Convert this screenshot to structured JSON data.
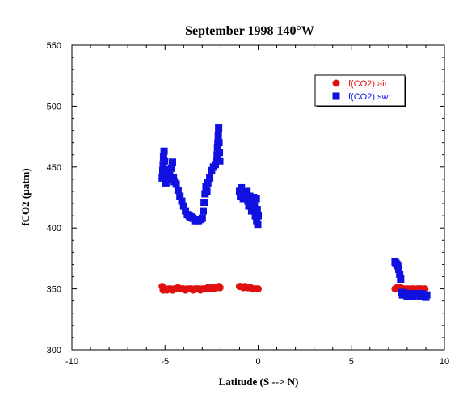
{
  "chart_data": {
    "type": "scatter",
    "title": "September 1998 140°W",
    "xlabel": "Latitude (S --> N)",
    "ylabel": "fCO2 (µatm)",
    "xlim": [
      -10,
      10
    ],
    "ylim": [
      300,
      550
    ],
    "x_ticks": [
      -10,
      -5,
      0,
      5,
      10
    ],
    "y_ticks": [
      300,
      350,
      400,
      450,
      500,
      550
    ],
    "x_tick_labels": [
      "-10",
      "-5",
      "0",
      "5",
      "10"
    ],
    "y_tick_labels": [
      "300",
      "350",
      "400",
      "450",
      "500",
      "550"
    ],
    "grid": false,
    "legend_position": "top-right",
    "series": [
      {
        "name": "f(CO2) air",
        "marker": "circle",
        "color": "#e01010",
        "points": [
          [
            -5.15,
            352
          ],
          [
            -5.1,
            349
          ],
          [
            -5.0,
            350
          ],
          [
            -4.9,
            349
          ],
          [
            -4.8,
            350
          ],
          [
            -4.7,
            350
          ],
          [
            -4.6,
            349
          ],
          [
            -4.5,
            350
          ],
          [
            -4.4,
            350
          ],
          [
            -4.3,
            351
          ],
          [
            -4.2,
            350
          ],
          [
            -4.1,
            350
          ],
          [
            -4.0,
            350
          ],
          [
            -3.9,
            349
          ],
          [
            -3.8,
            350
          ],
          [
            -3.7,
            350
          ],
          [
            -3.6,
            350
          ],
          [
            -3.5,
            349
          ],
          [
            -3.4,
            350
          ],
          [
            -3.3,
            350
          ],
          [
            -3.2,
            350
          ],
          [
            -3.1,
            349
          ],
          [
            -3.0,
            350
          ],
          [
            -2.9,
            350
          ],
          [
            -2.8,
            350
          ],
          [
            -2.7,
            351
          ],
          [
            -2.6,
            350
          ],
          [
            -2.5,
            351
          ],
          [
            -2.4,
            350
          ],
          [
            -2.3,
            351
          ],
          [
            -2.2,
            351
          ],
          [
            -2.1,
            352
          ],
          [
            -2.05,
            351
          ],
          [
            -1.0,
            352
          ],
          [
            -0.9,
            352
          ],
          [
            -0.8,
            351
          ],
          [
            -0.7,
            352
          ],
          [
            -0.6,
            351
          ],
          [
            -0.5,
            351
          ],
          [
            -0.4,
            351
          ],
          [
            -0.3,
            350
          ],
          [
            -0.2,
            350
          ],
          [
            -0.1,
            350
          ],
          [
            0.0,
            350
          ],
          [
            7.35,
            350
          ],
          [
            7.45,
            351
          ],
          [
            7.55,
            350
          ],
          [
            7.65,
            351
          ],
          [
            7.75,
            350
          ],
          [
            7.85,
            350
          ],
          [
            7.95,
            350
          ],
          [
            8.05,
            350
          ],
          [
            8.15,
            349
          ],
          [
            8.25,
            350
          ],
          [
            8.35,
            350
          ],
          [
            8.45,
            349
          ],
          [
            8.55,
            350
          ],
          [
            8.65,
            350
          ],
          [
            8.75,
            350
          ],
          [
            8.85,
            349
          ],
          [
            8.95,
            350
          ]
        ]
      },
      {
        "name": "f(CO2) sw",
        "marker": "square",
        "color": "#1010e0",
        "points": [
          [
            -5.15,
            441
          ],
          [
            -5.12,
            447
          ],
          [
            -5.1,
            452
          ],
          [
            -5.08,
            458
          ],
          [
            -5.05,
            463
          ],
          [
            -5.02,
            455
          ],
          [
            -5.0,
            448
          ],
          [
            -4.97,
            442
          ],
          [
            -4.95,
            437
          ],
          [
            -4.9,
            445
          ],
          [
            -4.85,
            440
          ],
          [
            -4.8,
            448
          ],
          [
            -4.75,
            443
          ],
          [
            -4.7,
            440
          ],
          [
            -4.65,
            449
          ],
          [
            -4.6,
            454
          ],
          [
            -4.55,
            441
          ],
          [
            -4.5,
            438
          ],
          [
            -4.4,
            436
          ],
          [
            -4.3,
            431
          ],
          [
            -4.2,
            426
          ],
          [
            -4.1,
            422
          ],
          [
            -4.0,
            418
          ],
          [
            -3.9,
            414
          ],
          [
            -3.8,
            411
          ],
          [
            -3.7,
            410
          ],
          [
            -3.6,
            409
          ],
          [
            -3.5,
            408
          ],
          [
            -3.4,
            406
          ],
          [
            -3.3,
            406
          ],
          [
            -3.2,
            406
          ],
          [
            -3.1,
            407
          ],
          [
            -3.0,
            408
          ],
          [
            -2.95,
            414
          ],
          [
            -2.9,
            421
          ],
          [
            -2.85,
            428
          ],
          [
            -2.8,
            434
          ],
          [
            -2.75,
            430
          ],
          [
            -2.7,
            437
          ],
          [
            -2.6,
            441
          ],
          [
            -2.5,
            447
          ],
          [
            -2.4,
            450
          ],
          [
            -2.3,
            452
          ],
          [
            -2.25,
            455
          ],
          [
            -2.2,
            460
          ],
          [
            -2.18,
            466
          ],
          [
            -2.16,
            470
          ],
          [
            -2.14,
            476
          ],
          [
            -2.12,
            482
          ],
          [
            -2.1,
            470
          ],
          [
            -2.08,
            462
          ],
          [
            -2.06,
            455
          ],
          [
            -1.0,
            430
          ],
          [
            -0.95,
            426
          ],
          [
            -0.9,
            433
          ],
          [
            -0.85,
            428
          ],
          [
            -0.8,
            424
          ],
          [
            -0.7,
            427
          ],
          [
            -0.6,
            430
          ],
          [
            -0.55,
            422
          ],
          [
            -0.5,
            418
          ],
          [
            -0.45,
            426
          ],
          [
            -0.4,
            420
          ],
          [
            -0.35,
            414
          ],
          [
            -0.3,
            422
          ],
          [
            -0.25,
            425
          ],
          [
            -0.2,
            418
          ],
          [
            -0.15,
            410
          ],
          [
            -0.1,
            424
          ],
          [
            -0.08,
            406
          ],
          [
            -0.05,
            415
          ],
          [
            -0.02,
            403
          ],
          [
            0.0,
            410
          ],
          [
            7.35,
            372
          ],
          [
            7.4,
            371
          ],
          [
            7.45,
            370
          ],
          [
            7.5,
            369
          ],
          [
            7.55,
            366
          ],
          [
            7.6,
            362
          ],
          [
            7.65,
            358
          ],
          [
            7.7,
            347
          ],
          [
            7.75,
            345
          ],
          [
            7.8,
            347
          ],
          [
            7.9,
            345
          ],
          [
            8.0,
            344
          ],
          [
            8.05,
            346
          ],
          [
            8.1,
            344
          ],
          [
            8.2,
            346
          ],
          [
            8.3,
            344
          ],
          [
            8.4,
            346
          ],
          [
            8.5,
            345
          ],
          [
            8.6,
            346
          ],
          [
            8.7,
            344
          ],
          [
            8.8,
            346
          ],
          [
            8.9,
            345
          ],
          [
            9.0,
            343
          ],
          [
            9.05,
            345
          ]
        ]
      }
    ]
  }
}
